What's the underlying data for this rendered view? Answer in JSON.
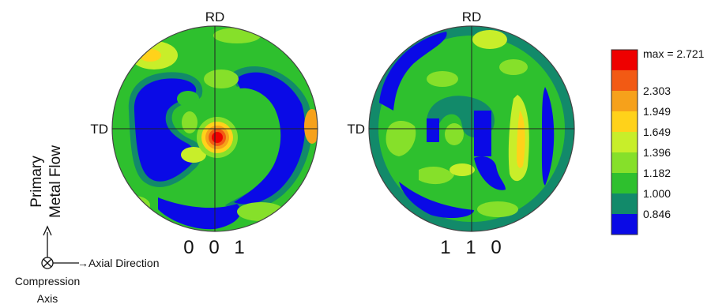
{
  "pole_figures": [
    {
      "id": "001",
      "label": "0 0 1",
      "top_label": "RD",
      "left_label": "TD"
    },
    {
      "id": "110",
      "label": "1 1 0",
      "top_label": "RD",
      "left_label": "TD"
    }
  ],
  "legend": {
    "levels": [
      {
        "text": "max = 2.721",
        "color": "#ee0000"
      },
      {
        "text": "2.303",
        "color": "#f25a14"
      },
      {
        "text": "1.949",
        "color": "#f6a11b"
      },
      {
        "text": "1.649",
        "color": "#ffd21a"
      },
      {
        "text": "1.396",
        "color": "#c8ee2a"
      },
      {
        "text": "1.182",
        "color": "#86e02a"
      },
      {
        "text": "1.000",
        "color": "#2ec02e"
      },
      {
        "text": "0.846",
        "color": "#128a6a"
      }
    ],
    "bottom_color": "#0a0ae6"
  },
  "annotations": {
    "primary_flow_line1": "Primary",
    "primary_flow_line2": "Metal Flow",
    "axial_direction": "→Axial Direction",
    "compression_line1": "Compression",
    "compression_line2": "Axis"
  },
  "colors": {
    "blue": "#0a0ae6",
    "teal": "#128a6a",
    "green": "#2ec02e",
    "light_green": "#86e02a",
    "yellow_green": "#c8ee2a",
    "yellow": "#ffd21a",
    "orange": "#f6a11b",
    "red_orange": "#f25a14",
    "red": "#ee0000"
  }
}
